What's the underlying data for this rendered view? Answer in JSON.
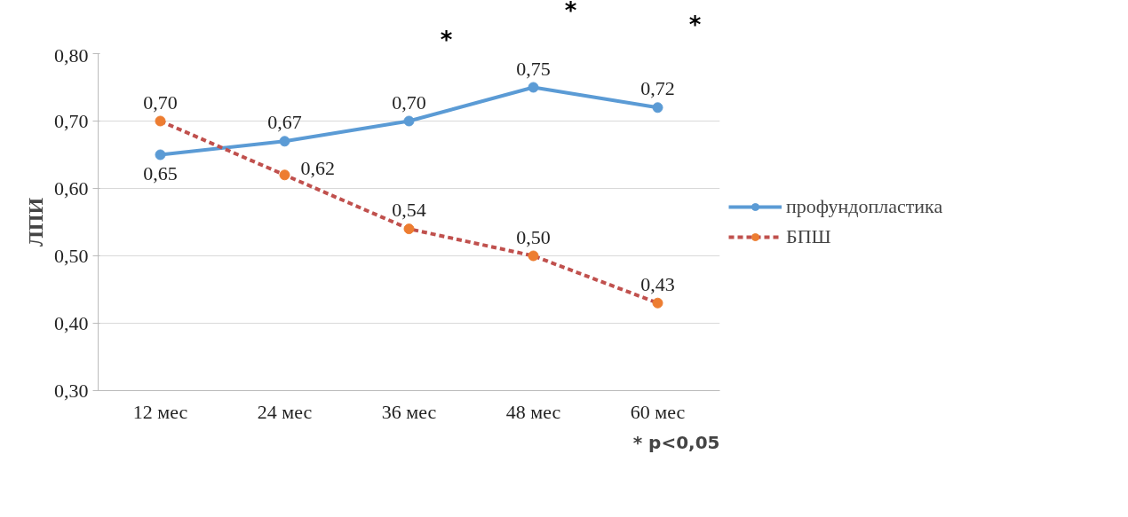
{
  "chart_data": {
    "type": "line",
    "ylabel": "ЛПИ",
    "categories": [
      "12 мес",
      "24 мес",
      "36 мес",
      "48 мес",
      "60 мес"
    ],
    "series": [
      {
        "name": "профундопластика",
        "color": "#5b9bd5",
        "values": [
          0.65,
          0.67,
          0.7,
          0.75,
          0.72
        ],
        "value_labels": [
          "0,65",
          "0,67",
          "0,70",
          "0,75",
          "0,72"
        ],
        "line_style": "solid"
      },
      {
        "name": "БПШ",
        "color": "#c0504d",
        "colors": [
          "#ed7d31",
          "#ed7d31",
          "#ed7d31",
          "#ed7d31",
          "#ed7d31"
        ],
        "values": [
          0.7,
          0.62,
          0.54,
          0.5,
          0.43
        ],
        "value_labels": [
          "0,70",
          "0,62",
          "0,54",
          "0,50",
          "0,43"
        ],
        "line_style": "dashed"
      }
    ],
    "ylim": [
      0.3,
      0.8
    ],
    "yticks": [
      {
        "value": 0.3,
        "label": "0,30"
      },
      {
        "value": 0.4,
        "label": "0,40"
      },
      {
        "value": 0.5,
        "label": "0,50"
      },
      {
        "value": 0.6,
        "label": "0,60"
      },
      {
        "value": 0.7,
        "label": "0,70"
      },
      {
        "value": 0.8,
        "label": "0,80"
      }
    ],
    "grid": "y",
    "legend": "right",
    "marker": "circle",
    "annotations": [
      "*",
      "*",
      "*",
      "* p<0,05"
    ]
  }
}
